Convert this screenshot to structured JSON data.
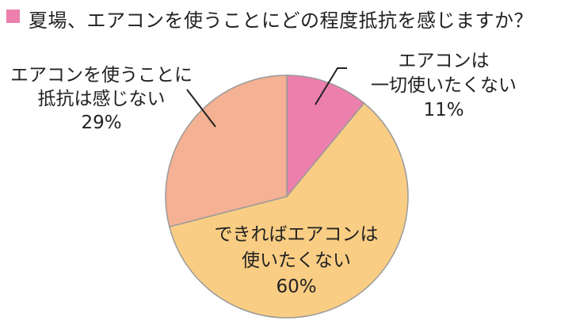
{
  "chart_data": {
    "type": "pie",
    "title": "夏場、エアコンを使うことにどの程度抵抗を感じますか？",
    "slices": [
      {
        "label_lines": [
          "エアコンは",
          "一切使いたくない"
        ],
        "value_label": "11%",
        "value": 11,
        "color": "#ec7fac"
      },
      {
        "label_lines": [
          "できればエアコンは",
          "使いたくない"
        ],
        "value_label": "60%",
        "value": 60,
        "color": "#f9cd83"
      },
      {
        "label_lines": [
          "エアコンを使うことに",
          "抵抗は感じない"
        ],
        "value_label": "29%",
        "value": 29,
        "color": "#f4b193"
      }
    ],
    "marker_color": "#ec7fac",
    "border_color": "#9a9a9a"
  }
}
